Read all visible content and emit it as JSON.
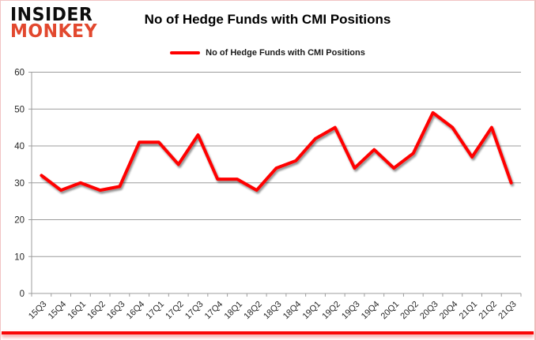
{
  "header": {
    "logo_line1": "INSIDER",
    "logo_line2": "MONKEY",
    "title": "No of Hedge Funds with CMI Positions"
  },
  "legend": {
    "label": "No of Hedge Funds with CMI Positions"
  },
  "colors": {
    "line": "#ff0000",
    "logo_accent": "#e2482e",
    "grid": "#9c9c9c",
    "axis_text": "#262626",
    "frame_bottom": "#f90606"
  },
  "chart_data": {
    "type": "line",
    "title": "No of Hedge Funds with CMI Positions",
    "categories": [
      "15Q3",
      "15Q4",
      "16Q1",
      "16Q2",
      "16Q3",
      "16Q4",
      "17Q1",
      "17Q2",
      "17Q3",
      "17Q4",
      "18Q1",
      "18Q2",
      "18Q3",
      "18Q4",
      "19Q1",
      "19Q2",
      "19Q3",
      "19Q4",
      "20Q1",
      "20Q2",
      "20Q3",
      "20Q4",
      "21Q1",
      "21Q2",
      "21Q3"
    ],
    "series": [
      {
        "name": "No of Hedge Funds with CMI Positions",
        "color": "#ff0000",
        "values": [
          32,
          28,
          30,
          28,
          29,
          41,
          41,
          35,
          43,
          31,
          31,
          28,
          34,
          36,
          42,
          45,
          34,
          39,
          34,
          38,
          49,
          45,
          37,
          45,
          30
        ]
      }
    ],
    "xlabel": "",
    "ylabel": "",
    "ylim": [
      0,
      60
    ],
    "yticks": [
      0,
      10,
      20,
      30,
      40,
      50,
      60
    ],
    "grid": true,
    "legend_position": "top"
  }
}
